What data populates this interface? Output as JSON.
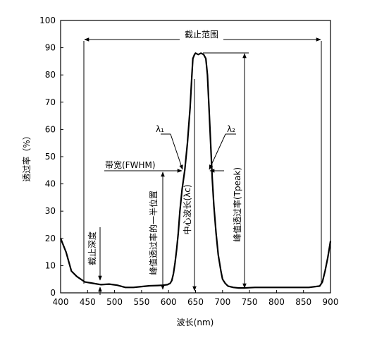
{
  "chart_data": {
    "type": "line",
    "xlabel": "波长(nm)",
    "ylabel": "透过率（%）",
    "xlim": [
      400,
      900
    ],
    "ylim": [
      0,
      100
    ],
    "xticks": [
      400,
      450,
      500,
      550,
      600,
      650,
      700,
      750,
      800,
      850,
      900
    ],
    "yticks": [
      0,
      10,
      20,
      30,
      40,
      50,
      60,
      70,
      80,
      90,
      100
    ],
    "grid": false,
    "series": [
      {
        "x": [
          400,
          410,
          420,
          430,
          445,
          460,
          475,
          490,
          505,
          520,
          535,
          550,
          565,
          580,
          590,
          598,
          603,
          606,
          609,
          612,
          615,
          618,
          621,
          625,
          630,
          635,
          640,
          643,
          645,
          648,
          650,
          655,
          660,
          665,
          669,
          672,
          675,
          678,
          681,
          684,
          688,
          692,
          697,
          700,
          705,
          710,
          720,
          730,
          740,
          750,
          760,
          780,
          800,
          820,
          840,
          860,
          880,
          885,
          890,
          895,
          900
        ],
        "y": [
          20,
          15,
          8,
          6,
          4,
          3.5,
          3,
          3.2,
          2.8,
          2,
          2,
          2.3,
          2.6,
          2.7,
          2.8,
          3,
          3.5,
          4.5,
          7,
          11,
          16,
          22,
          30,
          38,
          45,
          55,
          68,
          79,
          86,
          87.5,
          88,
          87.5,
          88,
          87.5,
          86,
          80,
          68,
          55,
          42,
          32,
          22,
          14,
          8,
          5,
          3.5,
          2.5,
          2,
          1.8,
          1.8,
          1.9,
          2,
          2,
          2,
          2,
          2,
          2,
          2.5,
          4,
          8,
          13,
          19
        ]
      }
    ],
    "annotations": {
      "cutoff_range": "截止范围",
      "lambda1": "λ₁",
      "lambda2": "λ₂",
      "bandwidth": "带宽(FWHM)",
      "half_peak": "峰值透过率的一半位置",
      "center_wavelength": "中心波长(λc)",
      "peak_transmittance": "峰值透过率(Tpeak)",
      "cutoff_depth": "截止深度"
    }
  }
}
